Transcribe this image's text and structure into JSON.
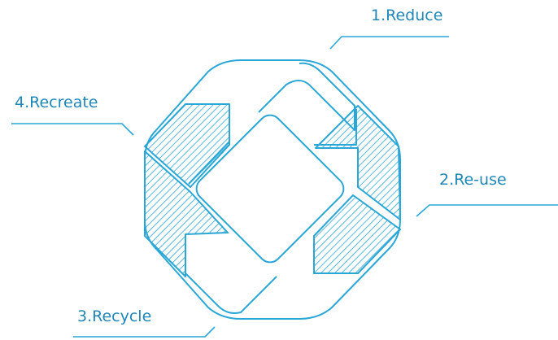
{
  "diagram": {
    "labels": {
      "reduce": "1.Reduce",
      "reuse": "2.Re-use",
      "recycle": "3.Recycle",
      "recreate": "4.Recreate"
    },
    "colors": {
      "accent": "#2aa7d6",
      "label_text": "#1f87b8",
      "background": "#ffffff"
    }
  }
}
